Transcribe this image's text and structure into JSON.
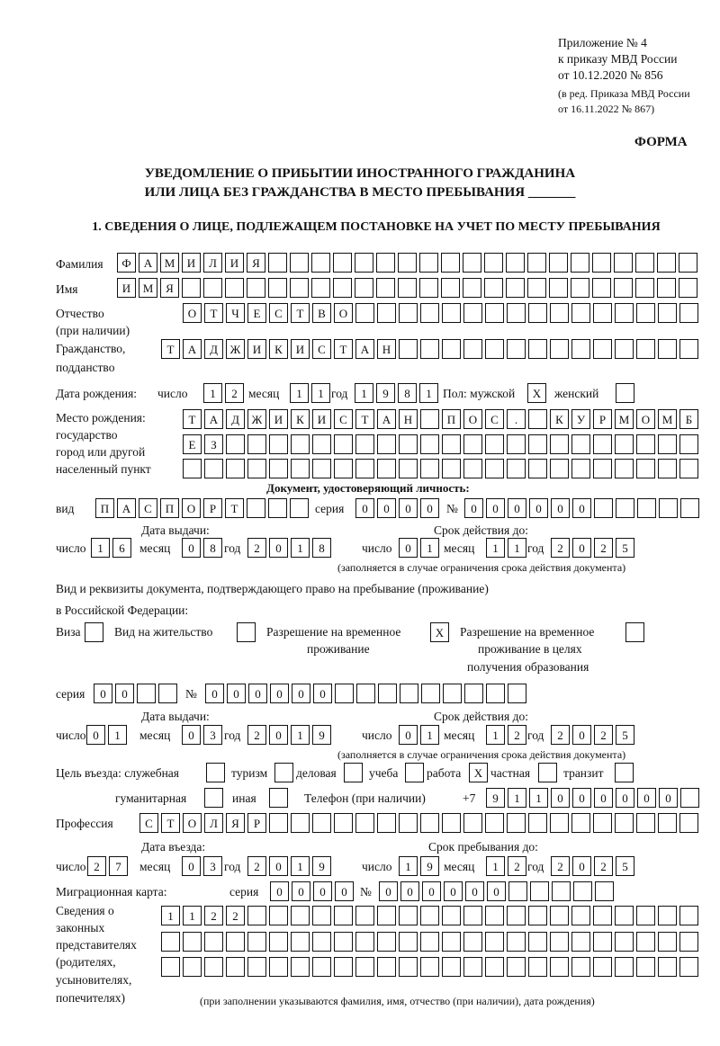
{
  "header": {
    "line1": "Приложение № 4",
    "line2": "к приказу МВД России",
    "line3": "от 10.12.2020 № 856",
    "line4": "(в ред. Приказа МВД России",
    "line5": "от 16.11.2022 № 867)",
    "form_label": "ФОРМА",
    "title1": "УВЕДОМЛЕНИЕ О ПРИБЫТИИ ИНОСТРАННОГО ГРАЖДАНИНА",
    "title2": "ИЛИ ЛИЦА БЕЗ ГРАЖДАНСТВА В МЕСТО ПРЕБЫВАНИЯ _______",
    "section1": "1. СВЕДЕНИЯ О ЛИЦЕ, ПОДЛЕЖАЩЕМ ПОСТАНОВКЕ НА УЧЕТ ПО МЕСТУ ПРЕБЫВАНИЯ"
  },
  "labels": {
    "surname": "Фамилия",
    "name": "Имя",
    "patronymic": "Отчество",
    "patronymic2": "(при наличии)",
    "citizenship": "Гражданство,",
    "citizenship2": "подданство",
    "dob": "Дата рождения:",
    "day": "число",
    "month": "месяц",
    "year": "год",
    "sex": "Пол: мужской",
    "female": "женский",
    "birthplace1": "Место рождения:",
    "birthplace2": "государство",
    "birthplace3": "город или другой",
    "birthplace4": "населенный пункт",
    "id_doc": "Документ, удостоверяющий личность:",
    "kind": "вид",
    "series": "серия",
    "number": "№",
    "issue_date": "Дата выдачи:",
    "valid_until": "Срок действия до:",
    "validity_note": "(заполняется в случае ограничения срока действия документа)",
    "residence_doc1": "Вид и реквизиты документа, подтверждающего право на пребывание (проживание)",
    "residence_doc2": "в Российской Федерации:",
    "visa": "Виза",
    "residence_permit": "Вид на жительство",
    "temp_permit1": "Разрешение на временное",
    "temp_permit2": "проживание",
    "edu_permit1": "Разрешение на временное",
    "edu_permit2": "проживание в целях",
    "edu_permit3": "получения образования",
    "purpose": "Цель въезда: служебная",
    "tourism": "туризм",
    "business": "деловая",
    "study": "учеба",
    "work": "работа",
    "private": "частная",
    "transit": "транзит",
    "humanitarian": "гуманитарная",
    "other": "иная",
    "phone": "Телефон (при наличии)",
    "phone_prefix": "+7",
    "profession": "Профессия",
    "entry_date": "Дата въезда:",
    "stay_until": "Срок пребывания до:",
    "migration_card": "Миграционная карта:",
    "reps1": "Сведения о",
    "reps2": "законных",
    "reps3": "представителях",
    "reps4": "(родителях,",
    "reps5": "усыновителях,",
    "reps6": "попечителях)",
    "reps_note": "(при заполнении указываются фамилия, имя, отчество (при наличии), дата рождения)"
  },
  "person": {
    "surname": "ФАМИЛИЯ",
    "name": "ИМЯ",
    "patronymic": "ОТЧЕСТВО",
    "citizenship": "ТАДЖИКИСТАН",
    "dob_day": "12",
    "dob_month": "11",
    "dob_year": "1981",
    "sex_male": "X",
    "sex_female": "",
    "birthplace_row1": "ТАДЖИКИСТАН ПОС. КУРМОМБ",
    "birthplace_row2": "ЕЗ",
    "birthplace_row3": ""
  },
  "id_document": {
    "kind": "ПАСПОРТ",
    "series": "0000",
    "number": "000000",
    "issue_day": "16",
    "issue_month": "08",
    "issue_year": "2018",
    "valid_day": "01",
    "valid_month": "11",
    "valid_year": "2025"
  },
  "residence_document": {
    "visa": "",
    "residence_permit": "",
    "temp_permit": "X",
    "edu_permit": "",
    "series": "00",
    "number": "000000",
    "issue_day": "01",
    "issue_month": "03",
    "issue_year": "2019",
    "valid_day": "01",
    "valid_month": "12",
    "valid_year": "2025"
  },
  "purpose": {
    "official": "",
    "tourism": "",
    "business": "",
    "study": "",
    "work": "X",
    "private": "",
    "transit": "",
    "humanitarian": "",
    "other": ""
  },
  "phone": "911000000",
  "profession": "СТОЛЯР",
  "stay": {
    "entry_day": "27",
    "entry_month": "03",
    "entry_year": "2019",
    "until_day": "19",
    "until_month": "12",
    "until_year": "2025"
  },
  "migration_card": {
    "series": "0000",
    "number": "000000"
  },
  "representatives": {
    "row1": "1122",
    "row2": "",
    "row3": ""
  }
}
